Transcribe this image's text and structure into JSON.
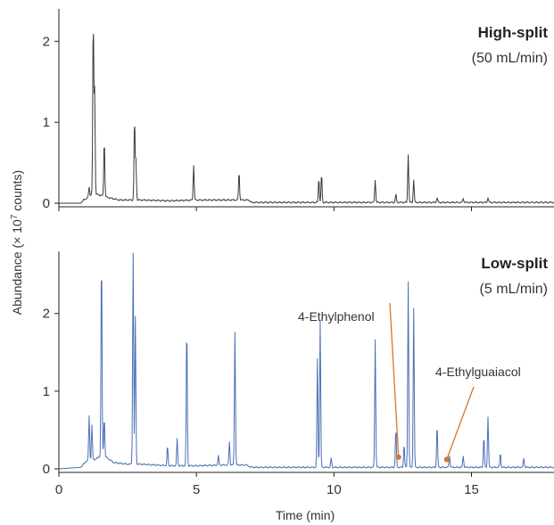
{
  "chart_data": {
    "type": "line",
    "xlabel": "Time (min)",
    "ylabel_prefix": "Abundance (× 10",
    "ylabel_exp": "7",
    "ylabel_suffix": " counts)",
    "xlim": [
      0,
      18
    ],
    "x_ticks": [
      0,
      5,
      10,
      15
    ],
    "panels": [
      {
        "id": "high",
        "title": "High-split",
        "subtitle": "(50 mL/min)",
        "color": "#3a3a3a",
        "ylim": [
          0,
          2.4
        ],
        "y_ticks": [
          0,
          1,
          2
        ],
        "baseline": [
          [
            0,
            0
          ],
          [
            0.8,
            0
          ],
          [
            0.9,
            0.04
          ],
          [
            1.0,
            0.06
          ],
          [
            1.1,
            0.08
          ],
          [
            1.2,
            0.12
          ],
          [
            1.5,
            0.1
          ],
          [
            1.8,
            0.07
          ],
          [
            2.2,
            0.04
          ],
          [
            2.6,
            0.04
          ],
          [
            3.0,
            0.04
          ],
          [
            4.0,
            0.03
          ],
          [
            5.0,
            0.04
          ],
          [
            6.0,
            0.04
          ],
          [
            6.9,
            0.04
          ],
          [
            7.0,
            0.01
          ],
          [
            18,
            0.01
          ]
        ],
        "peaks": [
          [
            1.1,
            0.12
          ],
          [
            1.25,
            2.17
          ],
          [
            1.3,
            1.3
          ],
          [
            1.65,
            0.7
          ],
          [
            2.75,
            1.0
          ],
          [
            2.8,
            0.5
          ],
          [
            4.9,
            0.43
          ],
          [
            6.55,
            0.35
          ],
          [
            9.45,
            0.3
          ],
          [
            9.55,
            0.35
          ],
          [
            11.5,
            0.28
          ],
          [
            12.25,
            0.1
          ],
          [
            12.7,
            0.6
          ],
          [
            12.9,
            0.28
          ],
          [
            13.75,
            0.06
          ],
          [
            14.7,
            0.05
          ],
          [
            15.6,
            0.06
          ]
        ],
        "annotations": []
      },
      {
        "id": "low",
        "title": "Low-split",
        "subtitle": "(5 mL/min)",
        "color": "#4a6fb5",
        "ylim": [
          0,
          2.8
        ],
        "y_ticks": [
          0,
          1,
          2
        ],
        "baseline": [
          [
            0,
            0
          ],
          [
            0.8,
            0.02
          ],
          [
            0.9,
            0.06
          ],
          [
            1.0,
            0.1
          ],
          [
            1.3,
            0.12
          ],
          [
            1.6,
            0.18
          ],
          [
            2.0,
            0.08
          ],
          [
            2.5,
            0.06
          ],
          [
            3.0,
            0.06
          ],
          [
            4.0,
            0.04
          ],
          [
            5.0,
            0.04
          ],
          [
            6.0,
            0.05
          ],
          [
            6.8,
            0.05
          ],
          [
            7.0,
            0.02
          ],
          [
            18,
            0.02
          ]
        ],
        "peaks": [
          [
            1.1,
            0.58
          ],
          [
            1.2,
            0.45
          ],
          [
            1.55,
            2.62
          ],
          [
            1.65,
            0.5
          ],
          [
            2.7,
            2.72
          ],
          [
            2.78,
            1.9
          ],
          [
            3.95,
            0.25
          ],
          [
            4.3,
            0.35
          ],
          [
            4.65,
            1.83
          ],
          [
            5.8,
            0.12
          ],
          [
            6.2,
            0.3
          ],
          [
            6.4,
            1.72
          ],
          [
            9.4,
            1.4
          ],
          [
            9.5,
            1.9
          ],
          [
            9.9,
            0.12
          ],
          [
            11.5,
            1.65
          ],
          [
            12.25,
            0.5
          ],
          [
            12.55,
            0.3
          ],
          [
            12.7,
            2.4
          ],
          [
            12.9,
            2.05
          ],
          [
            13.75,
            0.55
          ],
          [
            14.2,
            0.15
          ],
          [
            14.7,
            0.15
          ],
          [
            15.45,
            0.4
          ],
          [
            15.6,
            0.66
          ],
          [
            16.05,
            0.18
          ],
          [
            16.9,
            0.12
          ]
        ],
        "annotations": [
          {
            "label": "4-Ethylphenol",
            "x": 12.35,
            "y": 0.15,
            "color": "#d4762a"
          },
          {
            "label": "4-Ethylguaiacol",
            "x": 14.1,
            "y": 0.12,
            "color": "#d4762a"
          }
        ]
      }
    ]
  }
}
